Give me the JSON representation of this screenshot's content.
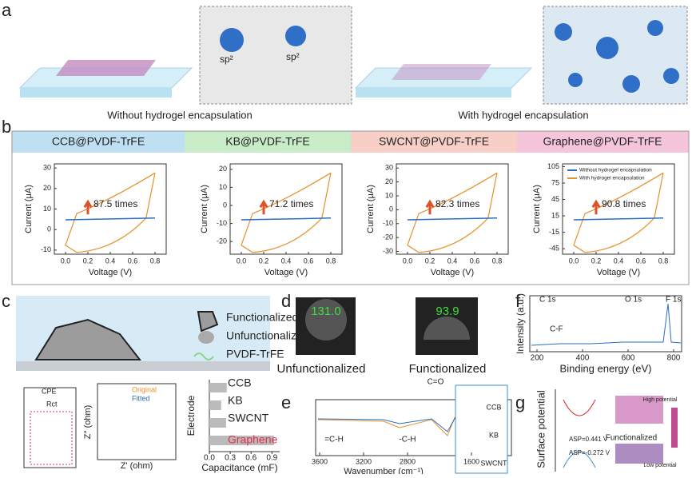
{
  "panel_a": {
    "label": "a",
    "sp2_left": "sp²",
    "sp2_right": "sp²",
    "caption_left": "Without hydrogel encapsulation",
    "caption_right": "With hydrogel encapsulation"
  },
  "panel_b": {
    "label": "b",
    "xlabel": "Voltage (V)",
    "ylabel": "Current (μA)",
    "legend": [
      "Without hydrogel encapsulation",
      "With hydrogel encapsulation"
    ],
    "xlim": [
      -0.1,
      0.9
    ],
    "xticks": [
      {
        "value": 0,
        "label": "0.0"
      },
      0.2,
      0.4,
      0.6,
      0.8
    ],
    "charts": [
      {
        "title": "CCB@PVDF-TrFE",
        "annotation": "87.5 times",
        "ylim": [
          -12,
          32
        ],
        "yticks": [
          -10,
          0,
          10,
          20,
          30
        ]
      },
      {
        "title": "KB@PVDF-TrFE",
        "annotation": "71.2 times",
        "ylim": [
          -27,
          23
        ],
        "yticks": [
          -20,
          -10,
          0,
          10,
          20
        ]
      },
      {
        "title": "SWCNT@PVDF-TrFE",
        "annotation": "82.3 times",
        "ylim": [
          -32,
          33
        ],
        "yticks": [
          -30,
          -20,
          -10,
          0,
          10,
          20,
          30
        ]
      },
      {
        "title": "Graphene@PVDF-TrFE",
        "annotation": "90.8 times",
        "ylim": [
          -55,
          110
        ],
        "yticks": [
          -45,
          -15,
          15,
          45,
          75,
          105
        ]
      }
    ]
  },
  "panel_c": {
    "label": "c",
    "legend": [
      "Functionalized",
      "Unfunctionalized",
      "PVDF-TrFE"
    ],
    "circuit": [
      "CPE",
      "Rct"
    ],
    "nyquist": {
      "series": [
        "Original",
        "Fitted"
      ],
      "xlabel": "Z' (ohm)",
      "ylabel": "Z'' (ohm)"
    },
    "bars": {
      "categories": [
        "CCB",
        "KB",
        "SWCNT",
        "Graphene"
      ],
      "values": [
        0.25,
        0.17,
        0.24,
        0.93
      ],
      "xlabel": "Capacitance (mF)",
      "ylabel": "Electrode",
      "xticks": [
        {
          "value": 0,
          "label": "0.0"
        },
        0.3,
        0.6,
        0.9
      ]
    }
  },
  "panel_d": {
    "label": "d",
    "angles": [
      "131.0",
      "93.9"
    ],
    "captions": [
      "Unfunctionalized",
      "Functionalized"
    ]
  },
  "panel_e": {
    "label": "e",
    "peaks": [
      "C=O",
      "=C-H",
      "-C-H"
    ],
    "xlabel": "Wavenumber (cm⁻¹)",
    "xticks": [
      3600,
      3200,
      2800,
      1600
    ],
    "insets": [
      "CCB",
      "KB",
      "SWCNT"
    ]
  },
  "panel_f": {
    "label": "f",
    "peaks": [
      "C 1s",
      "O 1s",
      "F 1s",
      "C-F"
    ],
    "ylabel": "Intensity (a.u.)",
    "xlabel": "Binding energy (eV)",
    "xticks": [
      200,
      400,
      600,
      800
    ]
  },
  "panel_g": {
    "label": "g",
    "ylabel": "Surface potential",
    "asp": [
      "ASP=0.441 V",
      "ASP=-0.272 V"
    ],
    "arrow": "Functionalized",
    "scale": [
      "High potential",
      "Low potential"
    ]
  }
}
